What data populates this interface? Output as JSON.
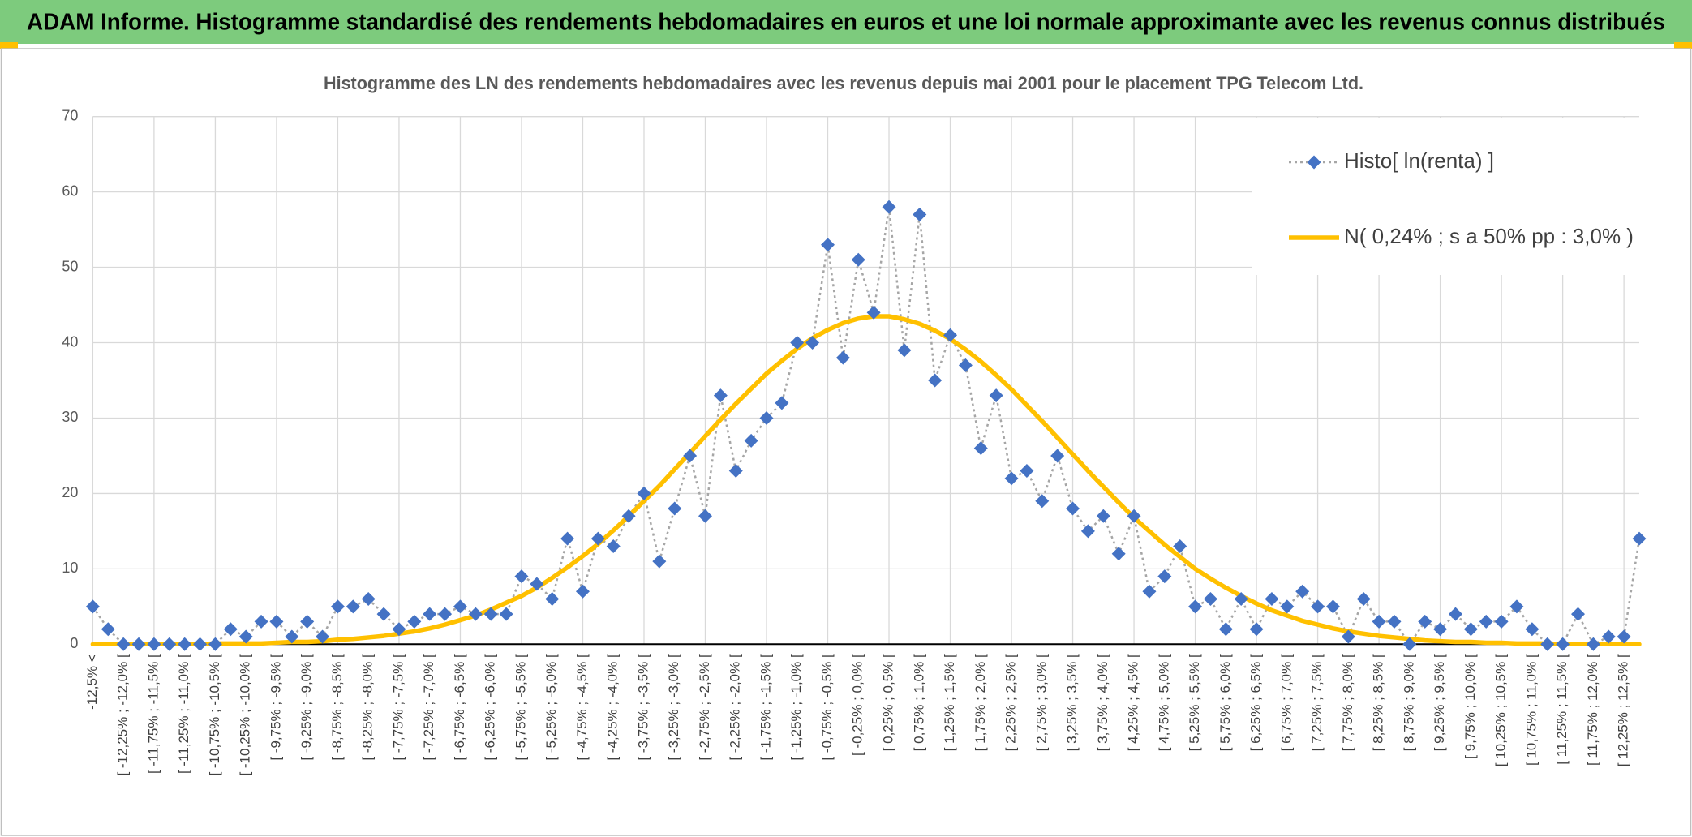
{
  "header": {
    "title": "ADAM Informe. Histogramme standardisé des rendements hebdomadaires en euros et une loi normale approximante avec les revenus connus distribués"
  },
  "chart_data": {
    "type": "line",
    "title": "Histogramme des LN des rendements hebdomadaires avec les revenus depuis mai 2001 pour le placement TPG Telecom Ltd.",
    "categories": [
      "-12,5% <",
      null,
      "[ -12,25% ; -12,0% [",
      null,
      "[ -11,75% ; -11,5% [",
      null,
      "[ -11,25% ; -11,0% [",
      null,
      "[ -10,75% ; -10,5% [",
      null,
      "[ -10,25% ; -10,0% [",
      null,
      "[ -9,75% ; -9,5% [",
      null,
      "[ -9,25% ; -9,0% [",
      null,
      "[ -8,75% ; -8,5% [",
      null,
      "[ -8,25% ; -8,0% [",
      null,
      "[ -7,75% ; -7,5% [",
      null,
      "[ -7,25% ; -7,0% [",
      null,
      "[ -6,75% ; -6,5% [",
      null,
      "[ -6,25% ; -6,0% [",
      null,
      "[ -5,75% ; -5,5% [",
      null,
      "[ -5,25% ; -5,0% [",
      null,
      "[ -4,75% ; -4,5% [",
      null,
      "[ -4,25% ; -4,0% [",
      null,
      "[ -3,75% ; -3,5% [",
      null,
      "[ -3,25% ; -3,0% [",
      null,
      "[ -2,75% ; -2,5% [",
      null,
      "[ -2,25% ; -2,0% [",
      null,
      "[ -1,75% ; -1,5% [",
      null,
      "[ -1,25% ; -1,0% [",
      null,
      "[ -0,75% ; -0,5% [",
      null,
      "[ -0,25% ; 0,0% [",
      null,
      "[ 0,25% ; 0,5% [",
      null,
      "[ 0,75% ; 1,0% [",
      null,
      "[ 1,25% ; 1,5% [",
      null,
      "[ 1,75% ; 2,0% [",
      null,
      "[ 2,25% ; 2,5% [",
      null,
      "[ 2,75% ; 3,0% [",
      null,
      "[ 3,25% ; 3,5% [",
      null,
      "[ 3,75% ; 4,0% [",
      null,
      "[ 4,25% ; 4,5% [",
      null,
      "[ 4,75% ; 5,0% [",
      null,
      "[ 5,25% ; 5,5% [",
      null,
      "[ 5,75% ; 6,0% [",
      null,
      "[ 6,25% ; 6,5% [",
      null,
      "[ 6,75% ; 7,0% [",
      null,
      "[ 7,25% ; 7,5% [",
      null,
      "[ 7,75% ; 8,0% [",
      null,
      "[ 8,25% ; 8,5% [",
      null,
      "[ 8,75% ; 9,0% [",
      null,
      "[ 9,25% ; 9,5% [",
      null,
      "[ 9,75% ; 10,0% [",
      null,
      "[ 10,25% ; 10,5% [",
      null,
      "[ 10,75% ; 11,0% [",
      null,
      "[ 11,25% ; 11,5% [",
      null,
      "[ 11,75% ; 12,0% [",
      null,
      "[ 12,25% ; 12,5% [",
      null
    ],
    "series": [
      {
        "name": "Histo[ ln(renta) ]",
        "color": "#4472c4",
        "line_color": "#a6a6a6",
        "line_style": "dotted",
        "marker": "diamond",
        "values": [
          5,
          2,
          0,
          0,
          0,
          0,
          0,
          0,
          0,
          2,
          1,
          3,
          3,
          1,
          3,
          1,
          5,
          5,
          6,
          4,
          2,
          3,
          4,
          4,
          5,
          4,
          4,
          4,
          9,
          8,
          6,
          14,
          7,
          14,
          13,
          17,
          20,
          11,
          18,
          25,
          17,
          33,
          23,
          27,
          30,
          32,
          40,
          40,
          53,
          38,
          51,
          44,
          58,
          39,
          57,
          35,
          41,
          37,
          26,
          33,
          22,
          23,
          19,
          25,
          18,
          15,
          17,
          12,
          17,
          7,
          9,
          13,
          5,
          6,
          2,
          6,
          2,
          6,
          5,
          7,
          5,
          5,
          1,
          6,
          3,
          3,
          0,
          3,
          2,
          4,
          2,
          3,
          3,
          5,
          2,
          0,
          0,
          4,
          0,
          1,
          1,
          14
        ]
      },
      {
        "name": "N( 0,24% ; s a 50% pp : 3,0% )",
        "color": "#ffc000",
        "line_style": "solid",
        "marker": "none",
        "values": [
          0,
          0,
          0,
          0,
          0,
          0,
          0,
          0,
          0.1,
          0.1,
          0.1,
          0.1,
          0.2,
          0.3,
          0.3,
          0.4,
          0.6,
          0.7,
          0.9,
          1.1,
          1.4,
          1.7,
          2.1,
          2.6,
          3.2,
          3.8,
          4.6,
          5.5,
          6.4,
          7.5,
          8.8,
          10.2,
          11.7,
          13.3,
          15.1,
          17.0,
          19.0,
          21.0,
          23.2,
          25.4,
          27.6,
          29.8,
          31.9,
          33.9,
          35.9,
          37.6,
          39.2,
          40.6,
          41.7,
          42.6,
          43.2,
          43.5,
          43.5,
          43.1,
          42.5,
          41.6,
          40.5,
          39.1,
          37.5,
          35.7,
          33.8,
          31.7,
          29.6,
          27.4,
          25.2,
          23.0,
          20.9,
          18.8,
          16.8,
          15.0,
          13.2,
          11.6,
          10.0,
          8.7,
          7.5,
          6.4,
          5.4,
          4.5,
          3.8,
          3.1,
          2.6,
          2.1,
          1.7,
          1.4,
          1.1,
          0.9,
          0.7,
          0.5,
          0.4,
          0.3,
          0.3,
          0.2,
          0.2,
          0.1,
          0.1,
          0.1,
          0,
          0,
          0,
          0,
          0,
          0
        ]
      }
    ],
    "ylim": [
      0,
      70
    ],
    "yticks": [
      0,
      10,
      20,
      30,
      40,
      50,
      60,
      70
    ],
    "grid": true,
    "legend": "upper right"
  }
}
